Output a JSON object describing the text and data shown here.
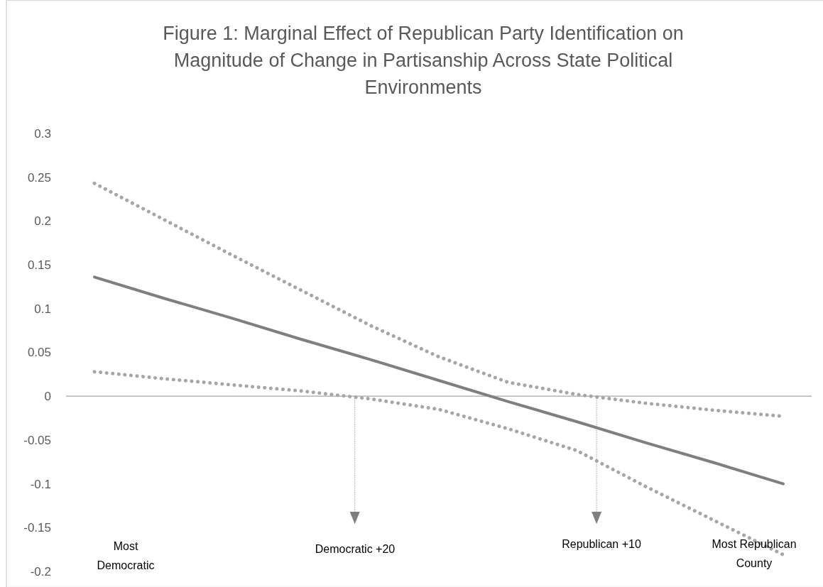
{
  "chart_data": {
    "type": "line",
    "title": "Figure 1: Marginal Effect of Republican Party Identification on Magnitude of Change in Partisanship Across State Political Environments",
    "categories": [
      null,
      null,
      null,
      null,
      null,
      null,
      null,
      null,
      null,
      null,
      null
    ],
    "series": [
      {
        "color": "#7f7f7f",
        "line_style": "solid",
        "values": [
          0.136,
          0.112,
          0.089,
          0.065,
          0.042,
          0.018,
          -0.006,
          -0.029,
          -0.053,
          -0.076,
          -0.1
        ]
      },
      {
        "color": "#a6a6a6",
        "line_style": "dotted",
        "values": [
          0.243,
          0.202,
          0.161,
          0.121,
          0.081,
          0.045,
          0.016,
          0.002,
          -0.008,
          -0.016,
          -0.023
        ]
      },
      {
        "color": "#a6a6a6",
        "line_style": "dotted",
        "values": [
          0.028,
          0.02,
          0.013,
          0.006,
          -0.003,
          -0.015,
          -0.037,
          -0.062,
          -0.103,
          -0.142,
          -0.181
        ]
      }
    ],
    "ylim": [
      -0.2,
      0.3
    ],
    "yticks": [
      -0.2,
      -0.15,
      -0.1,
      -0.05,
      0,
      0.05,
      0.1,
      0.15,
      0.2,
      0.25,
      0.3
    ],
    "marker": "none",
    "annotations": [
      "Most Democratic",
      "Democratic +20",
      "Republican +10",
      "Most Republican County"
    ]
  }
}
